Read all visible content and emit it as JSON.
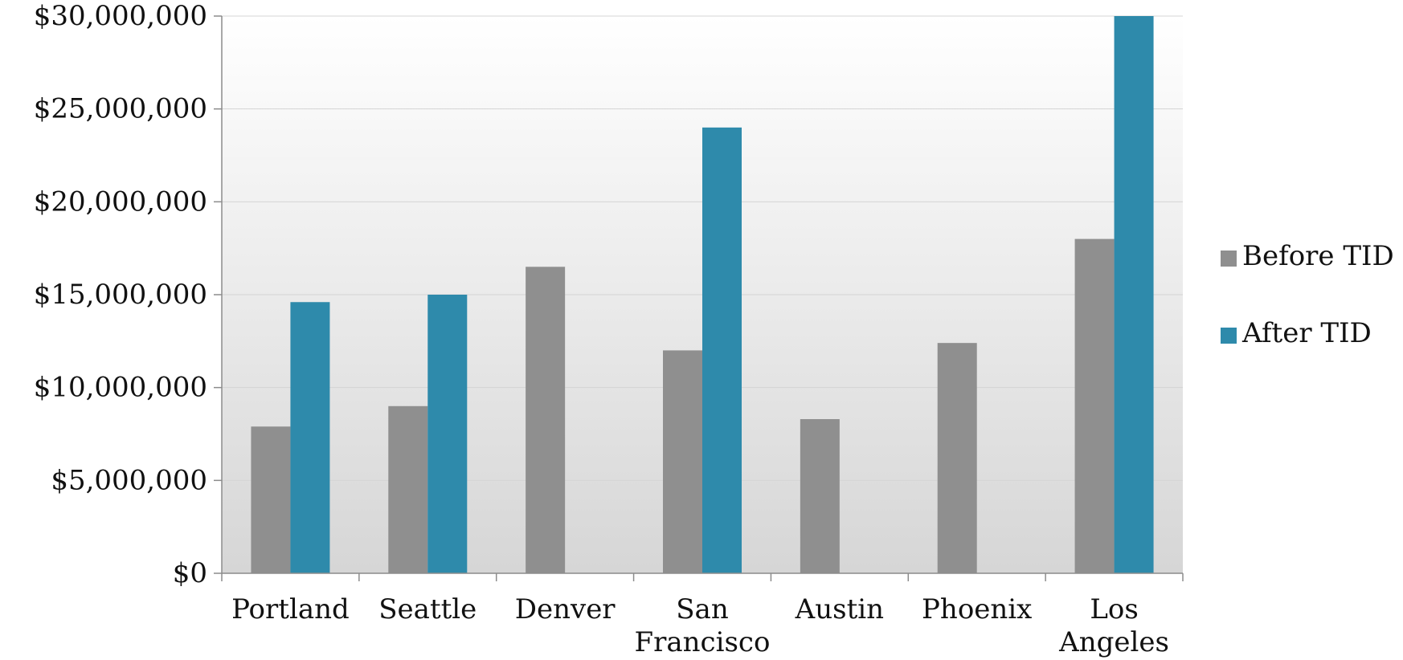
{
  "chart_data": {
    "type": "bar",
    "categories": [
      "Portland",
      "Seattle",
      "Denver",
      "San Francisco",
      "Austin",
      "Phoenix",
      "Los Angeles"
    ],
    "category_lines": [
      [
        "Portland"
      ],
      [
        "Seattle"
      ],
      [
        "Denver"
      ],
      [
        "San",
        "Francisco"
      ],
      [
        "Austin"
      ],
      [
        "Phoenix"
      ],
      [
        "Los",
        "Angeles"
      ]
    ],
    "series": [
      {
        "name": "Before TID",
        "color": "#8f8f8f",
        "values": [
          7900000,
          9000000,
          16500000,
          12000000,
          8300000,
          12400000,
          18000000
        ]
      },
      {
        "name": "After TID",
        "color": "#2e8aab",
        "values": [
          14600000,
          15000000,
          null,
          24000000,
          null,
          null,
          30000000
        ]
      }
    ],
    "ylim": [
      0,
      30000000
    ],
    "yticks": [
      0,
      5000000,
      10000000,
      15000000,
      20000000,
      25000000,
      30000000
    ],
    "ytick_labels": [
      "$0",
      "$5,000,000",
      "$10,000,000",
      "$15,000,000",
      "$20,000,000",
      "$25,000,000",
      "$30,000,000"
    ],
    "title": "",
    "xlabel": "",
    "ylabel": "",
    "grid": true,
    "legend_position": "right"
  }
}
